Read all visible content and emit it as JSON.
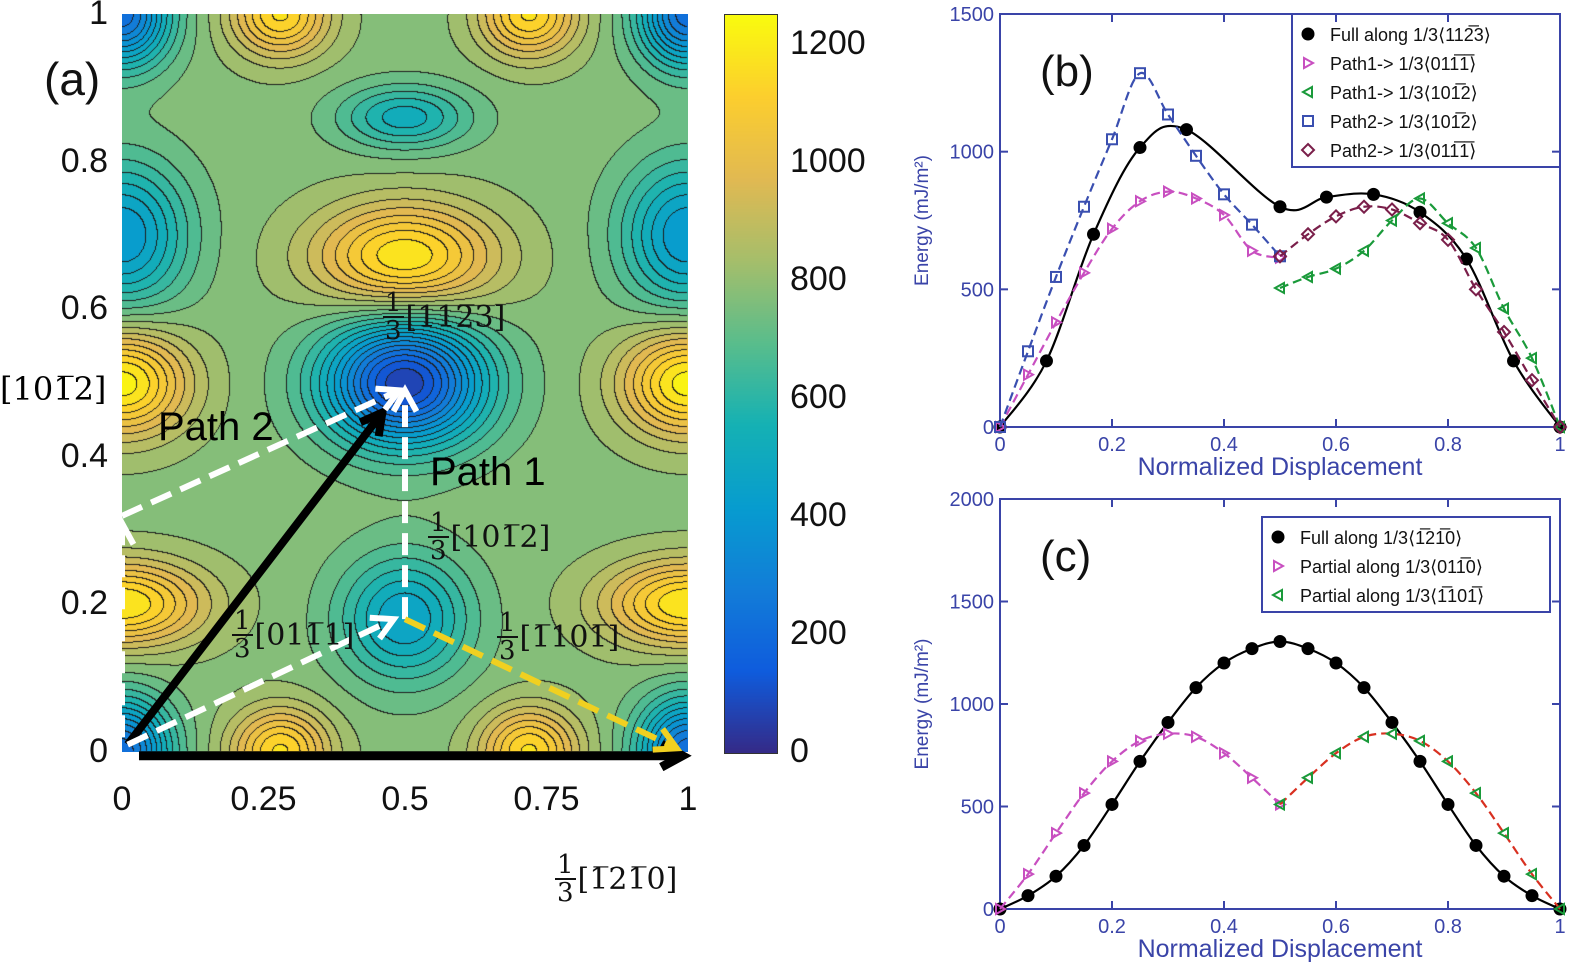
{
  "panel_a": {
    "label": "(a)",
    "x_ticks": [
      "0",
      "0.25",
      "0.5",
      "0.75",
      "1"
    ],
    "y_ticks": [
      "0",
      "0.2",
      "0.4",
      "0.6",
      "0.8",
      "1"
    ],
    "y_label": "[101̅2]",
    "x_label": {
      "num": "1",
      "den": "3",
      "text": "[1̅21̅0]"
    },
    "colorbar_ticks": [
      "0",
      "200",
      "400",
      "600",
      "800",
      "1000",
      "1200"
    ],
    "path2_label": "Path 2",
    "path1_label": "Path 1",
    "annotations": [
      {
        "num": "1",
        "den": "3",
        "text": "[112̅3]"
      },
      {
        "num": "1",
        "den": "3",
        "text": "[101̅2]"
      },
      {
        "num": "1",
        "den": "3",
        "text": "[011̅1]"
      },
      {
        "num": "1",
        "den": "3",
        "text": "[1̅101̅]"
      }
    ]
  },
  "chart_data": [
    {
      "type": "contour",
      "title": "(a)",
      "xlim": [
        0,
        1
      ],
      "ylim": [
        0,
        1
      ],
      "colorbar_range": [
        0,
        1250
      ],
      "colormap": "parula"
    },
    {
      "type": "line",
      "title": "(b)",
      "xlabel": "Normalized Displacement",
      "ylabel": "Energy (mJ/m²)",
      "xlim": [
        0,
        1
      ],
      "ylim": [
        0,
        1500
      ],
      "x_ticks": [
        "0",
        "0.2",
        "0.4",
        "0.6",
        "0.8",
        "1"
      ],
      "y_ticks": [
        "0",
        "500",
        "1000",
        "1500"
      ],
      "legend": "top-right",
      "series": [
        {
          "name": "Full along 1/3⟨112̅3⟩",
          "color": "#000000",
          "marker": "circle",
          "line": "solid",
          "x": [
            0,
            0.083,
            0.167,
            0.25,
            0.333,
            0.5,
            0.583,
            0.667,
            0.75,
            0.833,
            0.917,
            1
          ],
          "y": [
            0,
            240,
            700,
            1015,
            1080,
            800,
            835,
            845,
            780,
            610,
            240,
            0
          ]
        },
        {
          "name": "Path1-> 1/3⟨011̅1̅⟩",
          "color": "#c84fc0",
          "marker": "tri-right",
          "line": "dashed",
          "x": [
            0,
            0.05,
            0.1,
            0.15,
            0.2,
            0.25,
            0.3,
            0.35,
            0.4,
            0.45,
            0.5
          ],
          "y": [
            0,
            190,
            380,
            560,
            720,
            820,
            855,
            830,
            770,
            640,
            615
          ]
        },
        {
          "name": "Path1-> 1/3⟨101̅2⟩",
          "color": "#1a9a3a",
          "marker": "tri-left",
          "line": "dashed",
          "x": [
            0.5,
            0.55,
            0.6,
            0.65,
            0.7,
            0.75,
            0.8,
            0.85,
            0.9,
            0.95,
            1
          ],
          "y": [
            505,
            545,
            575,
            640,
            750,
            830,
            740,
            650,
            430,
            250,
            0
          ]
        },
        {
          "name": "Path2-> 1/3⟨101̅2⟩",
          "color": "#3a4fb0",
          "marker": "square",
          "line": "dashed",
          "x": [
            0,
            0.05,
            0.1,
            0.15,
            0.2,
            0.25,
            0.3,
            0.35,
            0.4,
            0.45,
            0.5
          ],
          "y": [
            0,
            275,
            545,
            800,
            1045,
            1285,
            1135,
            985,
            845,
            735,
            620
          ]
        },
        {
          "name": "Path2-> 1/3⟨011̅1̅⟩",
          "color": "#7a1f4a",
          "marker": "diamond",
          "line": "dashed",
          "x": [
            0.5,
            0.55,
            0.6,
            0.65,
            0.7,
            0.75,
            0.8,
            0.85,
            0.9,
            0.95,
            1
          ],
          "y": [
            620,
            700,
            765,
            800,
            790,
            740,
            680,
            500,
            345,
            170,
            0
          ]
        }
      ]
    },
    {
      "type": "line",
      "title": "(c)",
      "xlabel": "Normalized Displacement",
      "ylabel": "Energy (mJ/m²)",
      "xlim": [
        0,
        1
      ],
      "ylim": [
        0,
        2000
      ],
      "x_ticks": [
        "0",
        "0.2",
        "0.4",
        "0.6",
        "0.8",
        "1"
      ],
      "y_ticks": [
        "0",
        "500",
        "1000",
        "1500",
        "2000"
      ],
      "legend": "top-right",
      "series": [
        {
          "name": "Full along 1/3⟨1̅21̅0⟩",
          "color": "#000000",
          "marker": "circle",
          "line": "solid",
          "x": [
            0,
            0.05,
            0.1,
            0.15,
            0.2,
            0.25,
            0.3,
            0.35,
            0.4,
            0.45,
            0.5,
            0.55,
            0.6,
            0.65,
            0.7,
            0.75,
            0.8,
            0.85,
            0.9,
            0.95,
            1
          ],
          "y": [
            0,
            65,
            160,
            310,
            510,
            720,
            910,
            1080,
            1200,
            1270,
            1305,
            1270,
            1200,
            1080,
            910,
            720,
            510,
            310,
            160,
            65,
            0
          ]
        },
        {
          "name": "Partial along 1/3⟨011̅0⟩",
          "color": "#c84fc0",
          "marker": "tri-right",
          "line": "dashed",
          "x": [
            0,
            0.05,
            0.1,
            0.15,
            0.2,
            0.25,
            0.3,
            0.35,
            0.4,
            0.45,
            0.5
          ],
          "y": [
            0,
            170,
            370,
            565,
            720,
            820,
            855,
            840,
            760,
            640,
            510
          ]
        },
        {
          "name": "Partial along 1/3⟨1̅101̅⟩",
          "color": "#1a9a3a",
          "linecolor": "#d83020",
          "marker": "tri-left",
          "line": "dashed",
          "x": [
            0.5,
            0.55,
            0.6,
            0.65,
            0.7,
            0.75,
            0.8,
            0.85,
            0.9,
            0.95,
            1
          ],
          "y": [
            510,
            640,
            760,
            840,
            855,
            820,
            720,
            565,
            370,
            170,
            0
          ]
        }
      ]
    }
  ]
}
